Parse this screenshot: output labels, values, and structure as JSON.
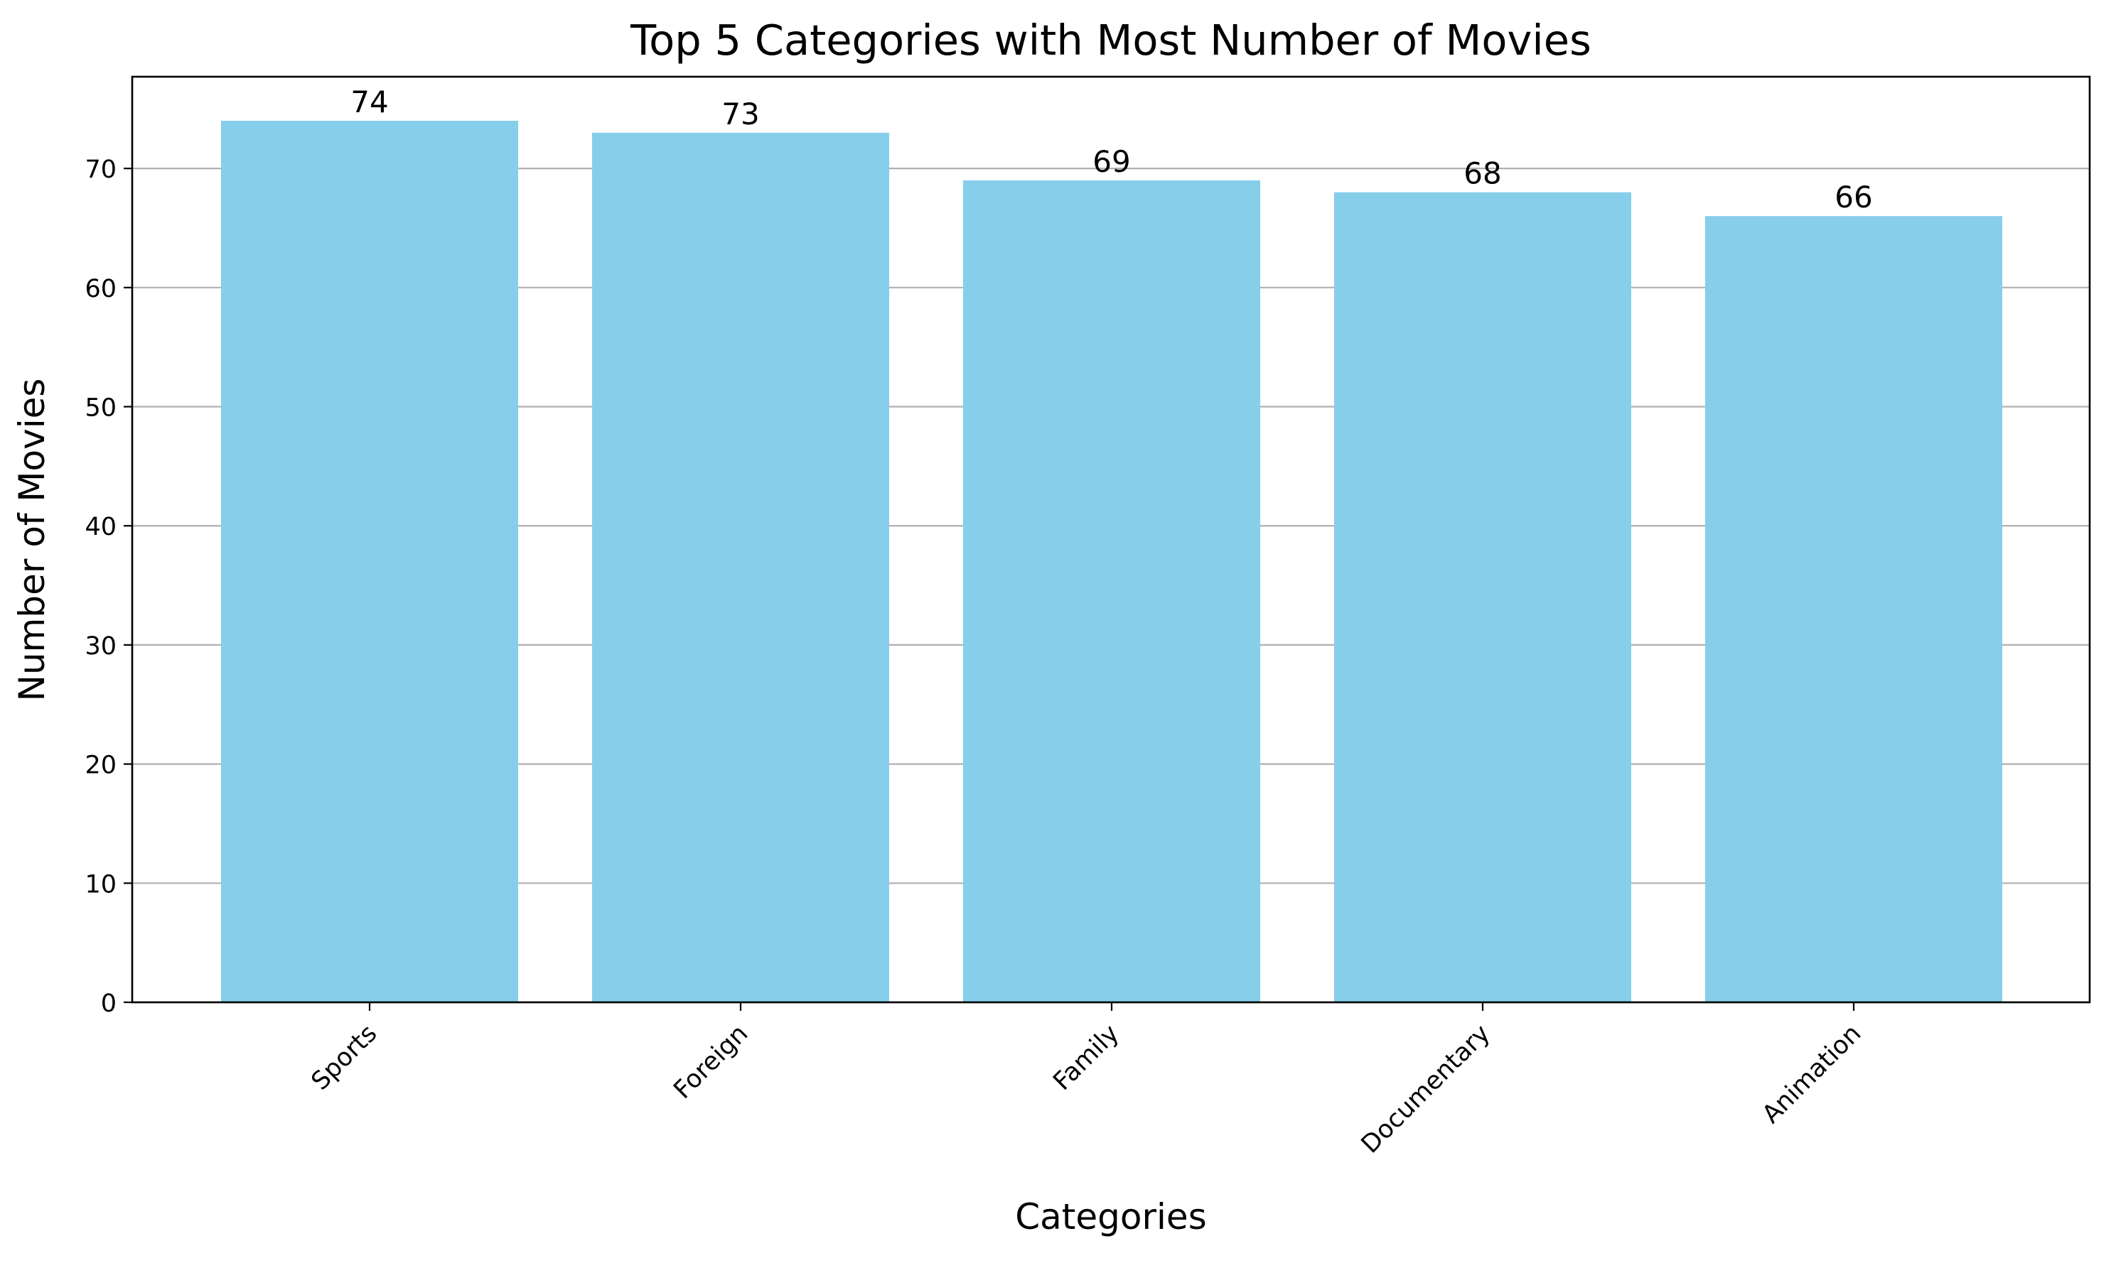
{
  "chart_data": {
    "type": "bar",
    "title": "Top 5 Categories with Most Number of Movies",
    "xlabel": "Categories",
    "ylabel": "Number of Movies",
    "categories": [
      "Sports",
      "Foreign",
      "Family",
      "Documentary",
      "Animation"
    ],
    "values": [
      74,
      73,
      69,
      68,
      66
    ],
    "ylim": [
      0,
      77.7
    ],
    "yticks": [
      0,
      10,
      20,
      30,
      40,
      50,
      60,
      70
    ],
    "ytick_labels": [
      "0",
      "10",
      "20",
      "30",
      "40",
      "50",
      "60",
      "70"
    ],
    "data_labels": [
      "74",
      "73",
      "69",
      "68",
      "66"
    ],
    "grid": "y-axis",
    "xtick_rotation": 45,
    "colors": {
      "bar": "#87ceeb",
      "grid": "#b0b0b0",
      "axis": "#000000",
      "background": "#ffffff"
    }
  }
}
